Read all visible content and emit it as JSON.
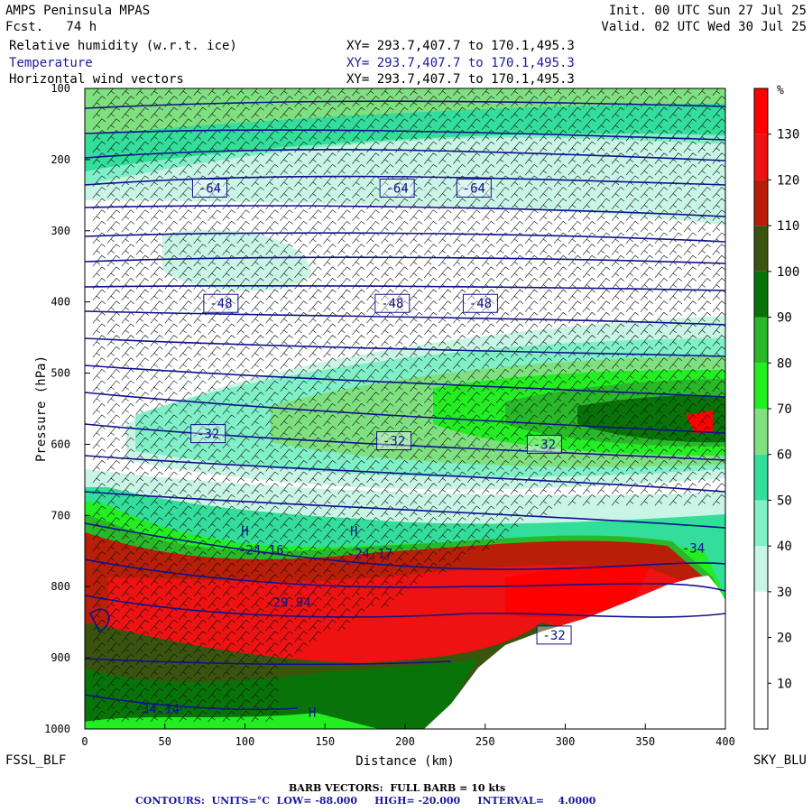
{
  "header": {
    "model": "AMPS Peninsula MPAS",
    "fcst": "Fcst.   74 h",
    "init": "Init. 00 UTC Sun 27 Jul 25",
    "valid": "Valid. 02 UTC Wed 30 Jul 25",
    "fields": [
      {
        "name": "Relative humidity (w.r.t. ice)",
        "xy": "XY= 293.7,407.7 to 170.1,495.3"
      },
      {
        "name": "Temperature",
        "xy": "XY= 293.7,407.7 to 170.1,495.3"
      },
      {
        "name": "Horizontal wind vectors",
        "xy": "XY= 293.7,407.7 to 170.1,495.3"
      }
    ]
  },
  "chart_data": {
    "type": "heatmap",
    "title": "Relative humidity (w.r.t. ice) / Temperature / Horizontal wind vectors — cross section",
    "xlabel": "Distance (km)",
    "ylabel": "Pressure (hPa)",
    "xlim": [
      0,
      400
    ],
    "ylim": [
      1000,
      100
    ],
    "x_ticks": [
      0,
      50,
      100,
      150,
      200,
      250,
      300,
      350,
      400
    ],
    "y_ticks": [
      100,
      200,
      300,
      400,
      500,
      600,
      700,
      800,
      900,
      1000
    ],
    "endpoints": {
      "left": "FSSL_BLF",
      "right": "SKY_BLU"
    },
    "colorbar": {
      "unit": "%",
      "tick_labels": [
        10,
        20,
        30,
        40,
        50,
        60,
        70,
        80,
        90,
        100,
        110,
        120,
        130
      ],
      "bins": [
        {
          "from": 0,
          "to": 10,
          "color": "#ffffff"
        },
        {
          "from": 10,
          "to": 20,
          "color": "#ffffff"
        },
        {
          "from": 20,
          "to": 30,
          "color": "#ffffff"
        },
        {
          "from": 30,
          "to": 40,
          "color": "#c8f5e6"
        },
        {
          "from": 40,
          "to": 50,
          "color": "#7ff0c8"
        },
        {
          "from": 50,
          "to": 60,
          "color": "#33dd9a"
        },
        {
          "from": 60,
          "to": 70,
          "color": "#7fe07f"
        },
        {
          "from": 70,
          "to": 80,
          "color": "#22ee22"
        },
        {
          "from": 80,
          "to": 90,
          "color": "#29b829"
        },
        {
          "from": 90,
          "to": 100,
          "color": "#087308"
        },
        {
          "from": 100,
          "to": 110,
          "color": "#3a5410"
        },
        {
          "from": 110,
          "to": 120,
          "color": "#b81e08"
        },
        {
          "from": 120,
          "to": 130,
          "color": "#ee1212"
        },
        {
          "from": 130,
          "to": 140,
          "color": "#ff0000"
        }
      ]
    },
    "contour_labels": [
      {
        "text": "-64",
        "x": 78,
        "p": 240
      },
      {
        "text": "-64",
        "x": 195,
        "p": 240
      },
      {
        "text": "-64",
        "x": 243,
        "p": 240
      },
      {
        "text": "-48",
        "x": 85,
        "p": 402
      },
      {
        "text": "-48",
        "x": 192,
        "p": 402
      },
      {
        "text": "-48",
        "x": 247,
        "p": 402
      },
      {
        "text": "-32",
        "x": 77,
        "p": 585
      },
      {
        "text": "-32",
        "x": 193,
        "p": 595
      },
      {
        "text": "-32",
        "x": 287,
        "p": 600
      },
      {
        "text": "-32",
        "x": 293,
        "p": 868
      }
    ],
    "extrema": [
      {
        "text": "H",
        "x": 100,
        "p": 728
      },
      {
        "text": "-24.16",
        "x": 110,
        "p": 755
      },
      {
        "text": "H",
        "x": 168,
        "p": 728
      },
      {
        "text": "-24.17",
        "x": 178,
        "p": 760
      },
      {
        "text": "-29.94",
        "x": 127,
        "p": 828
      },
      {
        "text": "-34",
        "x": 380,
        "p": 752
      },
      {
        "text": "-34.14",
        "x": 45,
        "p": 978
      },
      {
        "text": "H",
        "x": 142,
        "p": 983
      }
    ],
    "barb_caption": "BARB VECTORS:  FULL BARB = 10 kts",
    "contour_caption": "CONTOURS:  UNITS=°C  LOW= -88.000     HIGH= -20.000     INTERVAL=    4.0000"
  }
}
